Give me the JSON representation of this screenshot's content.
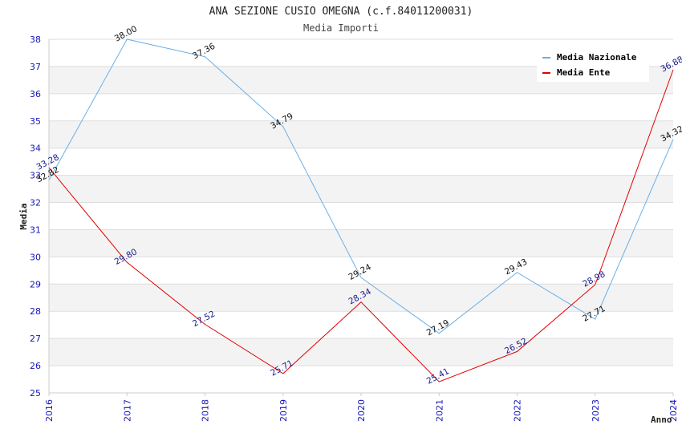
{
  "chart_data": {
    "type": "line",
    "title": "ANA SEZIONE CUSIO OMEGNA (c.f.84011200031)",
    "subtitle": "Media Importi",
    "xlabel": "Anno",
    "ylabel": "Media",
    "x": [
      "2016",
      "2017",
      "2018",
      "2019",
      "2020",
      "2021",
      "2022",
      "2023",
      "2024"
    ],
    "ylim": [
      25,
      38
    ],
    "yticks": [
      "25",
      "26",
      "27",
      "28",
      "29",
      "30",
      "31",
      "32",
      "33",
      "34",
      "35",
      "36",
      "37",
      "38"
    ],
    "grid": true,
    "legend_position": "top-right",
    "series": [
      {
        "name": "Media Nazionale",
        "color": "#6aafe6",
        "label_color": "#111111",
        "values": [
          32.82,
          38.0,
          37.36,
          34.79,
          29.24,
          27.19,
          29.43,
          27.71,
          34.32
        ],
        "labels": [
          "32.82",
          "38.00",
          "37.36",
          "34.79",
          "29.24",
          "27.19",
          "29.43",
          "27.71",
          "34.32"
        ]
      },
      {
        "name": "Media Ente",
        "color": "#e00000",
        "label_color": "#1a1a8c",
        "values": [
          33.28,
          29.8,
          27.52,
          25.71,
          28.34,
          25.41,
          26.52,
          28.98,
          36.88
        ],
        "labels": [
          "33.28",
          "29.80",
          "27.52",
          "25.71",
          "28.34",
          "25.41",
          "26.52",
          "28.98",
          "36.88"
        ]
      }
    ]
  }
}
